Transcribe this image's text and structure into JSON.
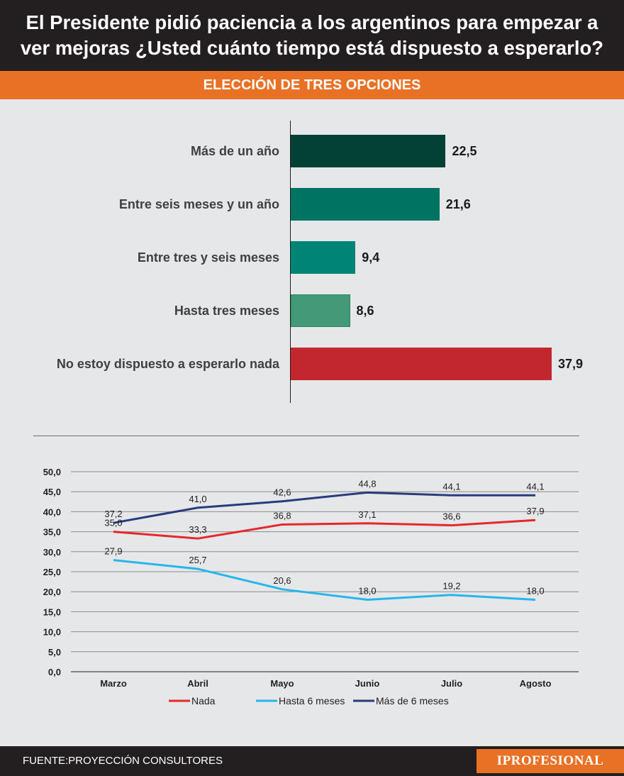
{
  "header": {
    "title_line1": "El Presidente pidió paciencia a los argentinos para empezar a",
    "title_line2": "ver mejoras ¿Usted cuánto tiempo está dispuesto a esperarlo?"
  },
  "banner": {
    "subtitle": "ELECCIÓN DE TRES OPCIONES"
  },
  "chart_data": [
    {
      "type": "bar",
      "orientation": "horizontal",
      "title": "ELECCIÓN DE TRES OPCIONES",
      "categories": [
        "Más de un año",
        "Entre seis meses y un año",
        "Entre tres y seis meses",
        "Hasta tres meses",
        "No estoy dispuesto a esperarlo nada"
      ],
      "values": [
        22.5,
        21.6,
        9.4,
        8.6,
        37.9
      ],
      "value_labels": [
        "22,5",
        "21,6",
        "9,4",
        "8,6",
        "37,9"
      ],
      "colors": [
        "#024134",
        "#007362",
        "#008476",
        "#449a78",
        "#c1272d"
      ],
      "xlim": [
        0,
        37.9
      ]
    },
    {
      "type": "line",
      "categories": [
        "Marzo",
        "Abril",
        "Mayo",
        "Junio",
        "Julio",
        "Agosto"
      ],
      "ylim": [
        0,
        50
      ],
      "yticks": [
        "0,0",
        "5,0",
        "10,0",
        "15,0",
        "20,0",
        "25,0",
        "30,0",
        "35,0",
        "40,0",
        "45,0",
        "50,0"
      ],
      "grid": true,
      "legend": "bottom",
      "series": [
        {
          "name": "Nada",
          "color": "#e5282b",
          "values": [
            35.0,
            33.3,
            36.8,
            37.1,
            36.6,
            37.9
          ],
          "labels": [
            "35,0",
            "33,3",
            "36,8",
            "37,1",
            "36,6",
            "37,9"
          ]
        },
        {
          "name": "Hasta 6 meses",
          "color": "#26b6ec",
          "values": [
            27.9,
            25.7,
            20.6,
            18.0,
            19.2,
            18.0
          ],
          "labels": [
            "27,9",
            "25,7",
            "20,6",
            "18,0",
            "19,2",
            "18,0"
          ]
        },
        {
          "name": "Más de 6 meses",
          "color": "#263c7d",
          "values": [
            37.2,
            41.0,
            42.6,
            44.8,
            44.1,
            44.1
          ],
          "labels": [
            "37,2",
            "41,0",
            "42,6",
            "44,8",
            "44,1",
            "44,1"
          ]
        }
      ]
    }
  ],
  "footer": {
    "source": "FUENTE:PROYECCIÓN CONSULTORES",
    "logo": "IPROFESIONAL",
    "logo_color": "#e97125"
  }
}
